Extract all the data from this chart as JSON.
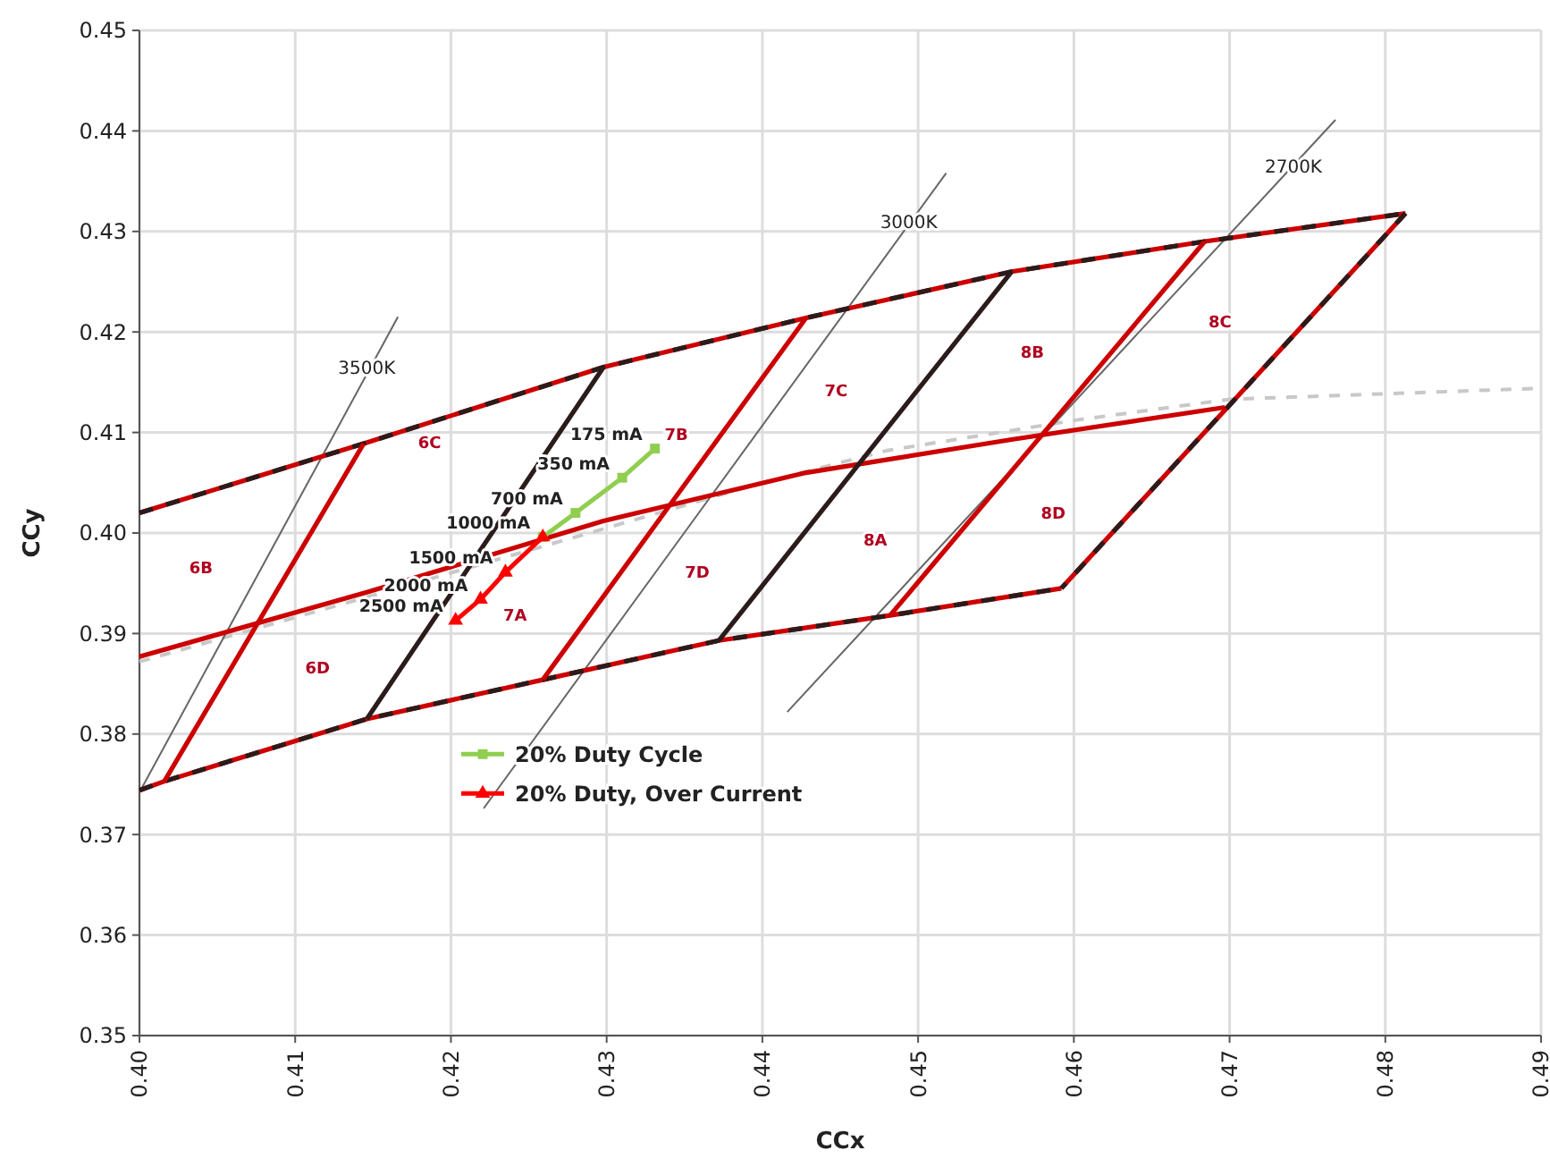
{
  "chart_data": {
    "type": "line",
    "xlabel": "CCx",
    "ylabel": "CCy",
    "xlim": [
      0.4,
      0.49
    ],
    "ylim": [
      0.35,
      0.45
    ],
    "xticks": [
      {
        "value": 0.4,
        "label": "0.40"
      },
      0.41,
      0.42,
      0.43,
      0.44,
      0.45,
      0.46,
      0.47,
      0.48,
      0.49
    ],
    "yticks": [
      0.35,
      0.36,
      0.37,
      0.38,
      0.39,
      {
        "value": 0.4,
        "label": "0.40"
      },
      0.41,
      0.42,
      0.43,
      0.44,
      0.45
    ],
    "grid": true,
    "legend": "bottom left",
    "series": [
      {
        "color": "#c8c8c8",
        "line_style": "dashed",
        "x": [
          0.4,
          0.415,
          0.43,
          0.44,
          0.448,
          0.46,
          0.47,
          0.49
        ],
        "values": [
          0.3872,
          0.3938,
          0.4005,
          0.405,
          0.4082,
          0.4112,
          0.4133,
          0.4144
        ]
      },
      {
        "color": "#666666",
        "x": [
          0.4,
          0.4166
        ],
        "values": [
          0.3742,
          0.4215
        ]
      },
      {
        "color": "#666666",
        "x": [
          0.4221,
          0.4518
        ],
        "values": [
          0.3726,
          0.4358
        ]
      },
      {
        "color": "#666666",
        "x": [
          0.4416,
          0.4768
        ],
        "values": [
          0.3822,
          0.4411
        ]
      },
      {
        "color": "#cc0000",
        "x": [
          0.4,
          0.4144,
          0.4298,
          0.4428,
          0.456,
          0.4684,
          0.4813
        ],
        "values": [
          0.402,
          0.4089,
          0.4165,
          0.4214,
          0.426,
          0.429,
          0.4318
        ]
      },
      {
        "color": "#2b1b1b",
        "line_style": "dashed",
        "x": [
          0.4,
          0.4144,
          0.4298,
          0.4428,
          0.456,
          0.4684,
          0.4813
        ],
        "values": [
          0.402,
          0.4089,
          0.4165,
          0.4214,
          0.426,
          0.429,
          0.4318
        ]
      },
      {
        "color": "#cc0000",
        "x": [
          0.4,
          0.4016,
          0.4146,
          0.4259,
          0.4372,
          0.4482,
          0.4592
        ],
        "values": [
          0.3744,
          0.3753,
          0.3815,
          0.3854,
          0.3893,
          0.3918,
          0.3945
        ]
      },
      {
        "color": "#2b1b1b",
        "line_style": "dashed",
        "x": [
          0.4,
          0.4016,
          0.4146,
          0.4259,
          0.4372,
          0.4482,
          0.4592
        ],
        "values": [
          0.3744,
          0.3753,
          0.3815,
          0.3854,
          0.3893,
          0.3918,
          0.3945
        ]
      },
      {
        "color": "#cc0000",
        "x": [
          0.4813,
          0.4592
        ],
        "values": [
          0.4318,
          0.3945
        ]
      },
      {
        "color": "#2b1b1b",
        "line_style": "dashed",
        "x": [
          0.4813,
          0.4592
        ],
        "values": [
          0.4318,
          0.3945
        ]
      },
      {
        "color": "#cc0000",
        "x": [
          0.4,
          0.4146,
          0.4298,
          0.4428,
          0.456,
          0.4697
        ],
        "values": [
          0.3877,
          0.3941,
          0.4012,
          0.406,
          0.4093,
          0.4125
        ]
      },
      {
        "color": "#cc0000",
        "x": [
          0.4144,
          0.4016
        ],
        "values": [
          0.4089,
          0.3753
        ]
      },
      {
        "color": "#2b1b1b",
        "x": [
          0.4298,
          0.4146
        ],
        "values": [
          0.4165,
          0.3815
        ]
      },
      {
        "color": "#cc0000",
        "x": [
          0.4428,
          0.4259
        ],
        "values": [
          0.4214,
          0.3854
        ]
      },
      {
        "color": "#2b1b1b",
        "x": [
          0.456,
          0.4372
        ],
        "values": [
          0.426,
          0.3893
        ]
      },
      {
        "color": "#cc0000",
        "x": [
          0.4684,
          0.4482
        ],
        "values": [
          0.429,
          0.3918
        ]
      },
      {
        "name": "20% Duty Cycle",
        "color": "#8fce4f",
        "marker": "square",
        "x": [
          0.4331,
          0.431,
          0.428,
          0.4259
        ],
        "values": [
          0.4084,
          0.4055,
          0.402,
          0.3996
        ]
      },
      {
        "name": "20% Duty, Over Current",
        "color": "#ff0000",
        "marker": "triangle",
        "x": [
          0.4259,
          0.4235,
          0.4219,
          0.4203
        ],
        "values": [
          0.3996,
          0.3961,
          0.3934,
          0.3913
        ]
      }
    ],
    "annotations": [
      {
        "text": "3500K",
        "x": 0.4146,
        "y": 0.4165
      },
      {
        "text": "3000K",
        "x": 0.4494,
        "y": 0.431
      },
      {
        "text": "2700K",
        "x": 0.4741,
        "y": 0.4365
      },
      "6B",
      "6C",
      "6D",
      "7A",
      "7B",
      "7C",
      "7D",
      "8A",
      "8B",
      "8C",
      "8D",
      {
        "text": "175 mA",
        "x": 0.4331,
        "y": 0.4084
      },
      {
        "text": "350 mA",
        "x": 0.431,
        "y": 0.4055
      },
      {
        "text": "700 mA",
        "x": 0.428,
        "y": 0.402
      },
      {
        "text": "1000 mA",
        "x": 0.4259,
        "y": 0.3996
      },
      {
        "text": "1500 mA",
        "x": 0.4235,
        "y": 0.3961
      },
      {
        "text": "2000 mA",
        "x": 0.4219,
        "y": 0.3934
      },
      {
        "text": "2500 mA",
        "x": 0.4203,
        "y": 0.3913
      }
    ]
  }
}
